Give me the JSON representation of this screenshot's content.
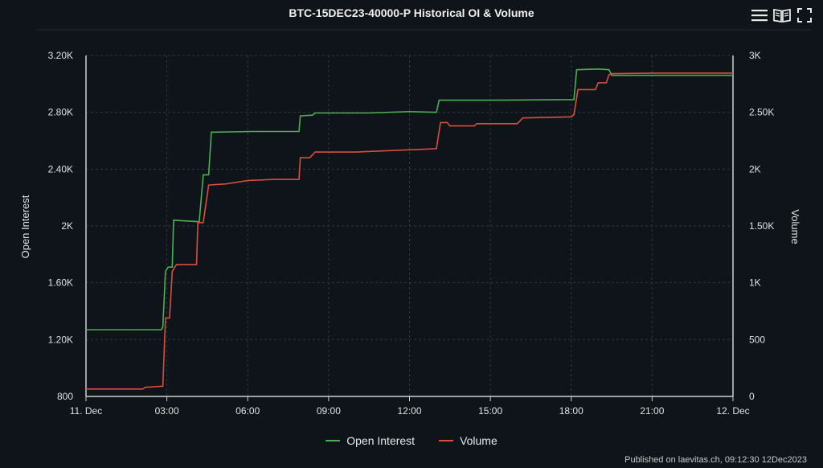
{
  "chart_data": {
    "type": "line",
    "title": "BTC-15DEC23-40000-P Historical OI & Volume",
    "x_axis": {
      "unit": "hours since 11 Dec 00:00",
      "range": [
        0,
        24
      ],
      "tick_values": [
        0,
        3,
        6,
        9,
        12,
        15,
        18,
        21,
        24
      ],
      "tick_labels": [
        "11. Dec",
        "03:00",
        "06:00",
        "09:00",
        "12:00",
        "15:00",
        "18:00",
        "21:00",
        "12. Dec"
      ]
    },
    "y_axis_left": {
      "title": "Open Interest",
      "range": [
        800,
        3200
      ],
      "tick_values": [
        800,
        1200,
        1600,
        2000,
        2400,
        2800,
        3200
      ],
      "tick_labels": [
        "800",
        "1.20K",
        "1.60K",
        "2K",
        "2.40K",
        "2.80K",
        "3.20K"
      ]
    },
    "y_axis_right": {
      "title": "Volume",
      "range": [
        0,
        3000
      ],
      "tick_values": [
        0,
        500,
        1000,
        1500,
        2000,
        2500,
        3000
      ],
      "tick_labels": [
        "0",
        "500",
        "1K",
        "1.50K",
        "2K",
        "2.50K",
        "3K"
      ]
    },
    "grid": true,
    "legend_position": "bottom-center",
    "series": [
      {
        "name": "Open Interest",
        "axis": "left",
        "color": "#4caf50",
        "points": [
          [
            0,
            1270
          ],
          [
            2.8,
            1270
          ],
          [
            2.85,
            1290
          ],
          [
            2.95,
            1680
          ],
          [
            3.05,
            1710
          ],
          [
            3.2,
            1710
          ],
          [
            3.25,
            2040
          ],
          [
            4.2,
            2030
          ],
          [
            4.35,
            2360
          ],
          [
            4.55,
            2360
          ],
          [
            4.65,
            2660
          ],
          [
            6.2,
            2665
          ],
          [
            7.9,
            2665
          ],
          [
            7.95,
            2775
          ],
          [
            8.4,
            2780
          ],
          [
            8.5,
            2795
          ],
          [
            10.5,
            2795
          ],
          [
            12.0,
            2805
          ],
          [
            13.0,
            2800
          ],
          [
            13.1,
            2885
          ],
          [
            15.0,
            2885
          ],
          [
            18.1,
            2890
          ],
          [
            18.2,
            3100
          ],
          [
            19.0,
            3105
          ],
          [
            19.4,
            3100
          ],
          [
            19.5,
            3060
          ],
          [
            24,
            3060
          ]
        ]
      },
      {
        "name": "Volume",
        "axis": "right",
        "color": "#d9503a",
        "points": [
          [
            0,
            65
          ],
          [
            2.1,
            65
          ],
          [
            2.2,
            80
          ],
          [
            2.5,
            85
          ],
          [
            2.85,
            90
          ],
          [
            2.95,
            690
          ],
          [
            3.1,
            690
          ],
          [
            3.2,
            1100
          ],
          [
            3.35,
            1160
          ],
          [
            3.8,
            1160
          ],
          [
            4.1,
            1160
          ],
          [
            4.15,
            1530
          ],
          [
            4.35,
            1530
          ],
          [
            4.55,
            1860
          ],
          [
            5.2,
            1870
          ],
          [
            6.0,
            1900
          ],
          [
            7.0,
            1910
          ],
          [
            7.9,
            1910
          ],
          [
            7.95,
            2100
          ],
          [
            8.3,
            2100
          ],
          [
            8.5,
            2150
          ],
          [
            10.0,
            2150
          ],
          [
            12.0,
            2170
          ],
          [
            13.0,
            2180
          ],
          [
            13.15,
            2410
          ],
          [
            13.4,
            2410
          ],
          [
            13.5,
            2380
          ],
          [
            14.4,
            2380
          ],
          [
            14.5,
            2400
          ],
          [
            16.0,
            2400
          ],
          [
            16.2,
            2450
          ],
          [
            18.0,
            2460
          ],
          [
            18.1,
            2480
          ],
          [
            18.25,
            2700
          ],
          [
            18.9,
            2700
          ],
          [
            19.0,
            2760
          ],
          [
            19.3,
            2760
          ],
          [
            19.4,
            2830
          ],
          [
            19.5,
            2840
          ],
          [
            21.0,
            2845
          ],
          [
            24,
            2845
          ]
        ]
      }
    ]
  },
  "toolbar": {
    "menu_icon": "hamburger-menu-icon",
    "book_icon": "open-book-icon",
    "fullscreen_icon": "fullscreen-icon"
  },
  "credit": "Published on laevitas.ch, 09:12:30 12Dec2023",
  "colors": {
    "background": "#0f141a",
    "grid": "#2e3640",
    "axis": "#cfcfcf"
  }
}
